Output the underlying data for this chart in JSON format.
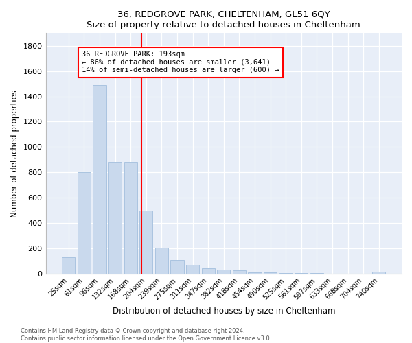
{
  "title1": "36, REDGROVE PARK, CHELTENHAM, GL51 6QY",
  "title2": "Size of property relative to detached houses in Cheltenham",
  "xlabel": "Distribution of detached houses by size in Cheltenham",
  "ylabel": "Number of detached properties",
  "categories": [
    "25sqm",
    "61sqm",
    "96sqm",
    "132sqm",
    "168sqm",
    "204sqm",
    "239sqm",
    "275sqm",
    "311sqm",
    "347sqm",
    "382sqm",
    "418sqm",
    "454sqm",
    "490sqm",
    "525sqm",
    "561sqm",
    "597sqm",
    "633sqm",
    "668sqm",
    "704sqm",
    "740sqm"
  ],
  "values": [
    130,
    800,
    1490,
    880,
    880,
    500,
    205,
    110,
    70,
    45,
    30,
    25,
    10,
    10,
    5,
    5,
    5,
    0,
    0,
    0,
    15
  ],
  "bar_color": "#c9d9ed",
  "bar_edge_color": "#aac4e0",
  "annotation_title": "36 REDGROVE PARK: 193sqm",
  "annotation_line1": "← 86% of detached houses are smaller (3,641)",
  "annotation_line2": "14% of semi-detached houses are larger (600) →",
  "vline_color": "red",
  "plot_bg_color": "#e8eef8",
  "footer1": "Contains HM Land Registry data © Crown copyright and database right 2024.",
  "footer2": "Contains public sector information licensed under the Open Government Licence v3.0.",
  "ylim": [
    0,
    1900
  ],
  "yticks": [
    0,
    200,
    400,
    600,
    800,
    1000,
    1200,
    1400,
    1600,
    1800
  ],
  "red_line_index": 4.82
}
